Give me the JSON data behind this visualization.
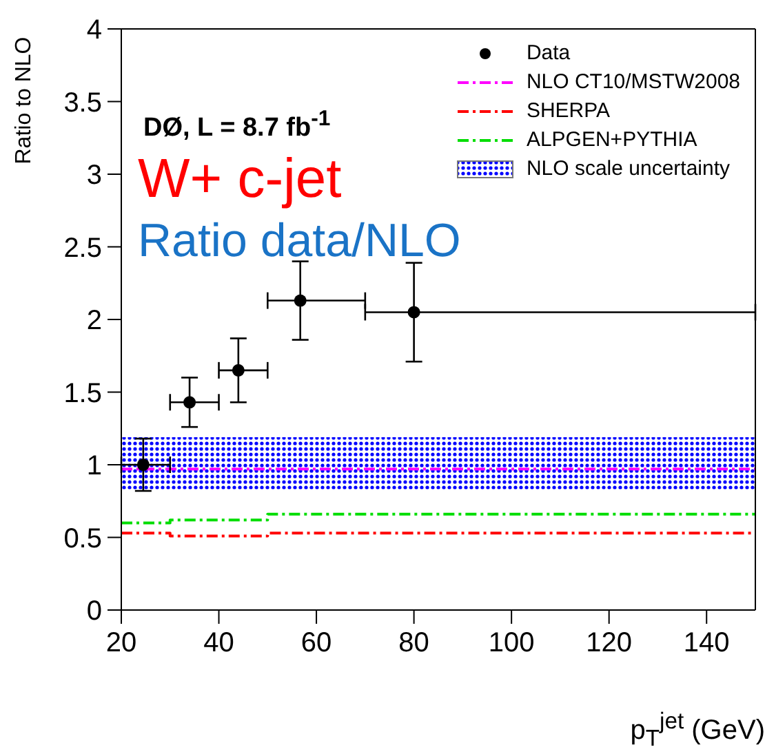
{
  "chart_data": {
    "type": "scatter",
    "annotations": [
      "DØ, L = 8.7 fb$^{-1}$",
      "W+ c-jet",
      "Ratio data/NLO"
    ],
    "xlabel": "p$_{T}$$^{jet}$ (GeV)",
    "ylabel": "Ratio to NLO",
    "xlim": [
      20,
      150
    ],
    "xticks": [
      20,
      40,
      60,
      80,
      100,
      120,
      140
    ],
    "ylim": [
      0,
      4
    ],
    "yticks": [
      0,
      0.5,
      1,
      1.5,
      2,
      2.5,
      3,
      3.5,
      4
    ],
    "series": [
      {
        "name": "Data",
        "color": "#000000",
        "marker": "circle",
        "x": [
          24.5,
          34,
          44,
          56.7,
          80
        ],
        "values": [
          1.0,
          1.43,
          1.65,
          2.13,
          2.05
        ],
        "errors": [
          0.18,
          0.17,
          0.22,
          0.27,
          0.34
        ],
        "xerrors": [
          [
            20,
            30
          ],
          [
            30,
            40
          ],
          [
            40,
            50
          ],
          [
            50,
            70
          ],
          [
            70,
            150
          ]
        ]
      },
      {
        "name": "NLO CT10/MSTW2008",
        "type": "step",
        "color": "#ff00ff",
        "line_style": "dashed",
        "x": [
          20,
          150
        ],
        "values": [
          0.97,
          0.97
        ]
      },
      {
        "name": "SHERPA",
        "type": "step",
        "color": "#ff0000",
        "line_style": "dashed",
        "x": [
          20,
          30,
          50,
          150
        ],
        "values": [
          0.53,
          0.51,
          0.53,
          0.53
        ]
      },
      {
        "name": "ALPGEN+PYTHIA",
        "type": "step",
        "color": "#00dd00",
        "line_style": "dashed",
        "x": [
          20,
          30,
          50,
          150
        ],
        "values": [
          0.6,
          0.62,
          0.66,
          0.66
        ]
      }
    ],
    "bands": [
      {
        "axis": "y",
        "from": 0.83,
        "to": 1.19,
        "label": "NLO scale uncertainty",
        "color": "#0000ff"
      }
    ],
    "legend": "top right"
  }
}
